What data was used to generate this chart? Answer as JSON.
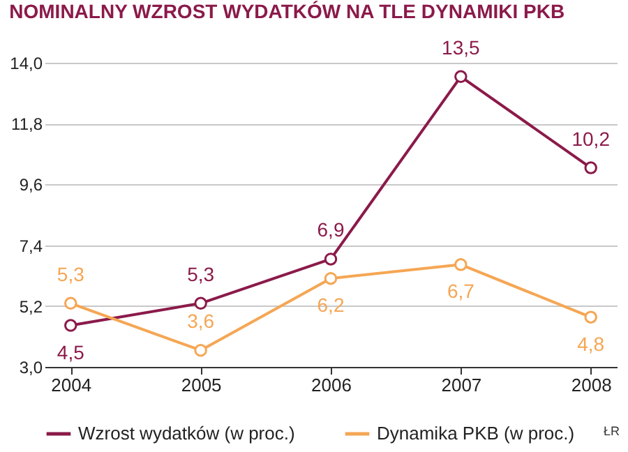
{
  "chart_data": {
    "type": "line",
    "title": "NOMINALNY WZROST WYDATKÓW NA TLE DYNAMIKI PKB",
    "categories": [
      "2004",
      "2005",
      "2006",
      "2007",
      "2008"
    ],
    "series": [
      {
        "name": "Wzrost wydatków (w proc.)",
        "color": "#8b1a4a",
        "values": [
          4.5,
          5.3,
          6.9,
          13.5,
          10.2
        ],
        "value_labels": [
          "4,5",
          "5,3",
          "6,9",
          "13,5",
          "10,2"
        ]
      },
      {
        "name": "Dynamika PKB (w proc.)",
        "color": "#f5a654",
        "values": [
          5.3,
          3.6,
          6.2,
          6.7,
          4.8
        ],
        "value_labels": [
          "5,3",
          "3,6",
          "6,2",
          "6,7",
          "4,8"
        ]
      }
    ],
    "ylim": [
      3,
      14
    ],
    "yticks": [
      {
        "value": 3,
        "label": "3,0"
      },
      {
        "value": 5.2,
        "label": "5,2"
      },
      {
        "value": 7.4,
        "label": "7,4"
      },
      {
        "value": 9.6,
        "label": "9,6"
      },
      {
        "value": 11.8,
        "label": "11,8"
      },
      {
        "value": 14,
        "label": "14,0"
      }
    ],
    "grid": "y",
    "marker": "circle",
    "line_style": "solid",
    "legend": "bottom",
    "annotations": [
      "ŁR"
    ]
  }
}
